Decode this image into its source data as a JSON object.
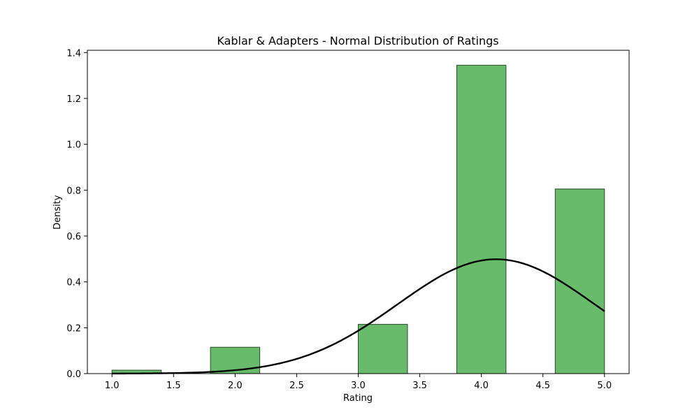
{
  "chart_data": {
    "type": "bar",
    "title": "Kablar & Adapters - Normal Distribution of Ratings",
    "xlabel": "Rating",
    "ylabel": "Density",
    "xlim": [
      0.8,
      5.2
    ],
    "ylim": [
      0,
      1.41
    ],
    "grid": false,
    "x_ticks": [
      1.0,
      1.5,
      2.0,
      2.5,
      3.0,
      3.5,
      4.0,
      4.5,
      5.0
    ],
    "y_ticks": [
      0.0,
      0.2,
      0.4,
      0.6,
      0.8,
      1.0,
      1.2,
      1.4
    ],
    "histogram": {
      "bins": [
        {
          "start": 1.0,
          "end": 1.4,
          "density": 0.015
        },
        {
          "start": 1.8,
          "end": 2.2,
          "density": 0.115
        },
        {
          "start": 3.0,
          "end": 3.4,
          "density": 0.215
        },
        {
          "start": 3.8,
          "end": 4.2,
          "density": 1.345
        },
        {
          "start": 4.6,
          "end": 5.0,
          "density": 0.805
        }
      ],
      "color": "#4caf50",
      "edge_color": "#2a4a2a"
    },
    "normal_curve": {
      "mean": 4.12,
      "std": 0.8,
      "x_range": [
        1.0,
        5.0
      ],
      "color": "#000000"
    }
  }
}
